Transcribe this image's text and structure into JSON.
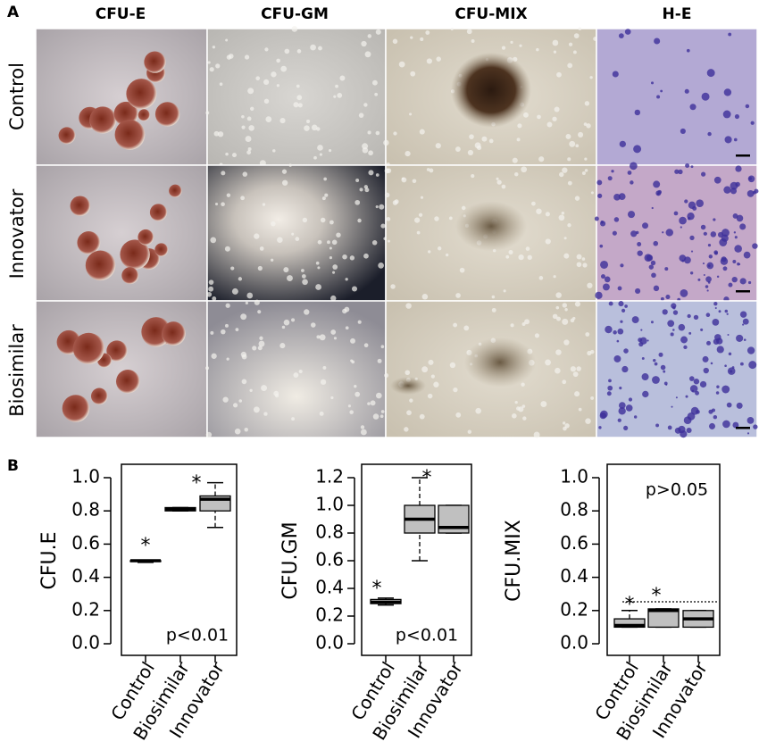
{
  "panel_a": {
    "label": "A",
    "columns": [
      "CFU-E",
      "CFU-GM",
      "CFU-MIX",
      "H-E"
    ],
    "rows": [
      "Control",
      "Innovator",
      "Biosimilar"
    ]
  },
  "panel_b": {
    "label": "B"
  },
  "chart_data": [
    {
      "type": "box",
      "ylabel": "CFU.E",
      "categories": [
        "Control",
        "Biosimilar",
        "Innovator"
      ],
      "boxes": [
        {
          "min": 0.49,
          "q1": 0.495,
          "median": 0.5,
          "q3": 0.5,
          "max": 0.5
        },
        {
          "min": 0.8,
          "q1": 0.8,
          "median": 0.81,
          "q3": 0.82,
          "max": 0.82
        },
        {
          "min": 0.7,
          "q1": 0.8,
          "median": 0.87,
          "q3": 0.89,
          "max": 0.97
        }
      ],
      "color": "#c0c0c0",
      "ylim": [
        0,
        1
      ],
      "yticks": [
        {
          "value": 0,
          "label": "0.0"
        },
        0.2,
        0.4,
        0.6,
        0.8,
        {
          "value": 1,
          "label": "1.0"
        }
      ],
      "annotations": [
        "*",
        "*"
      ],
      "p_text": "p<0.01"
    },
    {
      "type": "box",
      "ylabel": "CFU.GM",
      "categories": [
        "Control",
        "Biosimilar",
        "Innovator"
      ],
      "boxes": [
        {
          "min": 0.28,
          "q1": 0.29,
          "median": 0.3,
          "q3": 0.32,
          "max": 0.33
        },
        {
          "min": 0.6,
          "q1": 0.8,
          "median": 0.9,
          "q3": 1.0,
          "max": 1.2
        },
        {
          "min": 0.8,
          "q1": 0.8,
          "median": 0.84,
          "q3": 1.0,
          "max": 1.0
        }
      ],
      "color": "#c0c0c0",
      "ylim": [
        0,
        1.2
      ],
      "yticks": [
        {
          "value": 0,
          "label": "0.0"
        },
        0.2,
        0.4,
        0.6,
        0.8,
        {
          "value": 1,
          "label": "1.0"
        },
        1.2
      ],
      "annotations": [
        "*",
        "*"
      ],
      "p_text": "p<0.01"
    },
    {
      "type": "box",
      "ylabel": "CFU.MIX",
      "categories": [
        "Control",
        "Biosimilar",
        "Innovator"
      ],
      "boxes": [
        {
          "min": 0.1,
          "q1": 0.1,
          "median": 0.11,
          "q3": 0.15,
          "max": 0.2
        },
        {
          "min": 0.1,
          "q1": 0.1,
          "median": 0.2,
          "q3": 0.21,
          "max": 0.21
        },
        {
          "min": 0.1,
          "q1": 0.1,
          "median": 0.15,
          "q3": 0.2,
          "max": 0.2
        }
      ],
      "color": "#c0c0c0",
      "ylim": [
        0,
        1
      ],
      "yticks": [
        {
          "value": 0,
          "label": "0.0"
        },
        0.2,
        0.4,
        0.6,
        0.8,
        {
          "value": 1,
          "label": "1.0"
        }
      ],
      "annotations": [
        "*",
        "*"
      ],
      "p_text": "p>0.05"
    }
  ]
}
